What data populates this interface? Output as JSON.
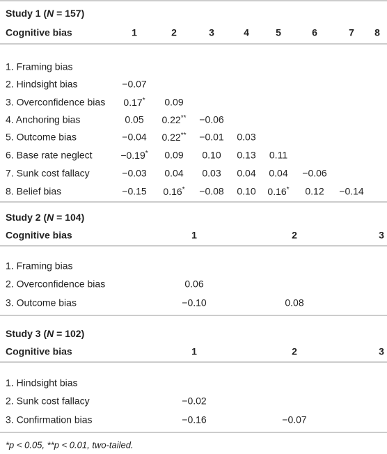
{
  "studies": [
    {
      "title": {
        "prefix": "Study 1 (",
        "n_symbol": "N",
        "suffix": " = 157)"
      },
      "header": [
        "Cognitive bias",
        "1",
        "2",
        "3",
        "4",
        "5",
        "6",
        "7",
        "8"
      ],
      "rows": [
        {
          "label": "1. Framing bias",
          "cells": []
        },
        {
          "label": "2. Hindsight bias",
          "cells": [
            "−0.07"
          ]
        },
        {
          "label": "3. Overconfidence bias",
          "cells": [
            "0.17*",
            "0.09"
          ]
        },
        {
          "label": "4. Anchoring bias",
          "cells": [
            "0.05",
            "0.22**",
            "−0.06"
          ]
        },
        {
          "label": "5. Outcome bias",
          "cells": [
            "−0.04",
            "0.22**",
            "−0.01",
            "0.03"
          ]
        },
        {
          "label": "6. Base rate neglect",
          "cells": [
            "−0.19*",
            "0.09",
            "0.10",
            "0.13",
            "0.11"
          ]
        },
        {
          "label": "7. Sunk cost fallacy",
          "cells": [
            "−0.03",
            "0.04",
            "0.03",
            "0.04",
            "0.04",
            "−0.06"
          ]
        },
        {
          "label": "8. Belief bias",
          "cells": [
            "−0.15",
            "0.16*",
            "−0.08",
            "0.10",
            "0.16*",
            "0.12",
            "−0.14"
          ]
        }
      ]
    },
    {
      "title": {
        "prefix": "Study 2 (",
        "n_symbol": "N",
        "suffix": " = 104)"
      },
      "header": [
        "Cognitive bias",
        "1",
        "2",
        "3"
      ],
      "rows": [
        {
          "label": "1. Framing bias",
          "cells": []
        },
        {
          "label": "2. Overconfidence bias",
          "cells": [
            "0.06"
          ]
        },
        {
          "label": "3. Outcome bias",
          "cells": [
            "−0.10",
            "0.08"
          ]
        }
      ]
    },
    {
      "title": {
        "prefix": "Study 3 (",
        "n_symbol": "N",
        "suffix": " = 102)"
      },
      "header": [
        "Cognitive bias",
        "1",
        "2",
        "3"
      ],
      "rows": [
        {
          "label": "1. Hindsight bias",
          "cells": []
        },
        {
          "label": "2. Sunk cost fallacy",
          "cells": [
            "−0.02"
          ]
        },
        {
          "label": "3. Confirmation bias",
          "cells": [
            "−0.16",
            "−0.07"
          ]
        }
      ]
    }
  ],
  "footnote": "*p < 0.05, **p < 0.01, two-tailed."
}
